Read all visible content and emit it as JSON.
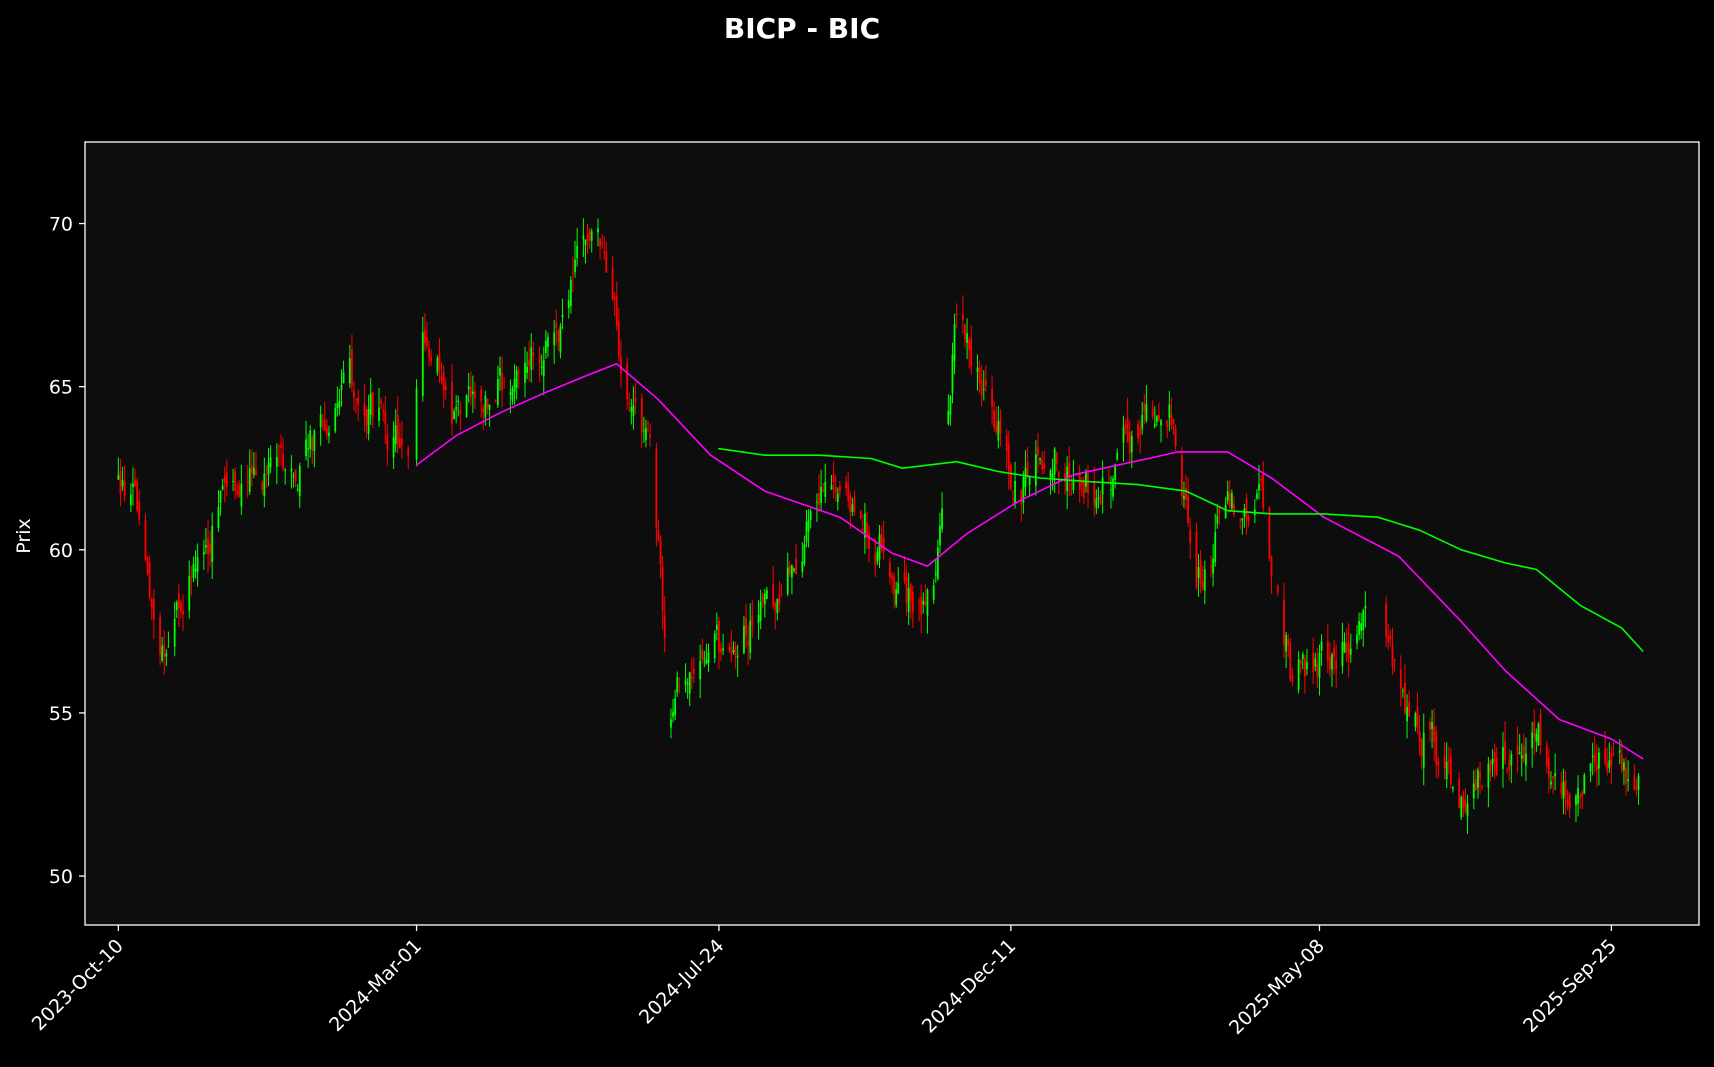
{
  "chart_data": {
    "type": "candlestick",
    "title": "BICP - BIC",
    "xlabel": "",
    "ylabel": "Prix",
    "ylim": [
      48.5,
      72.5
    ],
    "xlim": [
      "2023-09-24",
      "2025-11-06"
    ],
    "y_ticks": [
      50,
      55,
      60,
      65,
      70
    ],
    "x_ticks": [
      "2023-Oct-10",
      "2024-Mar-01",
      "2024-Jul-24",
      "2024-Dec-11",
      "2025-May-08",
      "2025-Sep-25"
    ],
    "grid": false,
    "legend": "none",
    "colors": {
      "background": "#000000",
      "plot_background": "#0d0d0d",
      "frame": "#ffffff",
      "text": "#ffffff",
      "up": "#00ff00",
      "down": "#ff0000"
    },
    "price_anchors": [
      [
        "2023-10-10",
        62.0
      ],
      [
        "2023-10-20",
        61.0
      ],
      [
        "2023-10-27",
        58.5
      ],
      [
        "2023-11-03",
        56.5
      ],
      [
        "2023-11-17",
        60.0
      ],
      [
        "2023-12-01",
        61.5
      ],
      [
        "2023-12-15",
        62.0
      ],
      [
        "2024-01-05",
        62.5
      ],
      [
        "2024-01-19",
        64.0
      ],
      [
        "2024-02-02",
        65.2
      ],
      [
        "2024-02-16",
        63.5
      ],
      [
        "2024-02-26",
        63.0
      ],
      [
        "2024-03-05",
        66.5
      ],
      [
        "2024-03-20",
        64.0
      ],
      [
        "2024-04-05",
        64.5
      ],
      [
        "2024-04-20",
        65.5
      ],
      [
        "2024-05-10",
        67.0
      ],
      [
        "2024-05-25",
        70.0
      ],
      [
        "2024-06-10",
        65.0
      ],
      [
        "2024-06-20",
        63.5
      ],
      [
        "2024-07-01",
        55.5
      ],
      [
        "2024-07-15",
        56.5
      ],
      [
        "2024-08-05",
        57.5
      ],
      [
        "2024-08-25",
        59.0
      ],
      [
        "2024-09-15",
        62.0
      ],
      [
        "2024-10-05",
        60.5
      ],
      [
        "2024-10-25",
        58.5
      ],
      [
        "2024-11-05",
        59.0
      ],
      [
        "2024-11-15",
        67.5
      ],
      [
        "2024-11-30",
        64.5
      ],
      [
        "2024-12-15",
        62.0
      ],
      [
        "2025-01-05",
        63.0
      ],
      [
        "2025-01-20",
        62.0
      ],
      [
        "2025-02-05",
        63.5
      ],
      [
        "2025-02-25",
        64.5
      ],
      [
        "2025-03-10",
        59.0
      ],
      [
        "2025-03-25",
        61.0
      ],
      [
        "2025-04-10",
        62.0
      ],
      [
        "2025-04-25",
        56.0
      ],
      [
        "2025-05-15",
        57.0
      ],
      [
        "2025-06-05",
        57.5
      ],
      [
        "2025-06-25",
        54.5
      ],
      [
        "2025-07-15",
        52.5
      ],
      [
        "2025-07-30",
        53.5
      ],
      [
        "2025-08-20",
        54.5
      ],
      [
        "2025-08-31",
        52.0
      ],
      [
        "2025-09-15",
        53.5
      ],
      [
        "2025-10-08",
        53.0
      ]
    ],
    "gaps": [
      [
        "2024-02-26",
        "2024-03-01"
      ],
      [
        "2025-04-15",
        "2025-04-18"
      ],
      [
        "2025-06-01",
        "2025-06-07"
      ]
    ],
    "series": [
      {
        "name": "",
        "color": "#ff00ff",
        "points": [
          [
            "2024-03-01",
            62.6
          ],
          [
            "2024-03-20",
            63.5
          ],
          [
            "2024-04-10",
            64.2
          ],
          [
            "2024-05-01",
            64.8
          ],
          [
            "2024-05-20",
            65.3
          ],
          [
            "2024-06-05",
            65.7
          ],
          [
            "2024-06-25",
            64.6
          ],
          [
            "2024-07-20",
            62.9
          ],
          [
            "2024-08-15",
            61.8
          ],
          [
            "2024-09-20",
            61.0
          ],
          [
            "2024-10-15",
            59.9
          ],
          [
            "2024-11-01",
            59.5
          ],
          [
            "2024-11-20",
            60.5
          ],
          [
            "2024-12-15",
            61.5
          ],
          [
            "2025-01-10",
            62.3
          ],
          [
            "2025-02-15",
            62.8
          ],
          [
            "2025-03-01",
            63.0
          ],
          [
            "2025-03-25",
            63.0
          ],
          [
            "2025-04-15",
            62.2
          ],
          [
            "2025-05-10",
            61.0
          ],
          [
            "2025-06-15",
            59.8
          ],
          [
            "2025-07-15",
            57.8
          ],
          [
            "2025-08-05",
            56.3
          ],
          [
            "2025-08-31",
            54.8
          ],
          [
            "2025-09-25",
            54.2
          ],
          [
            "2025-10-10",
            53.6
          ]
        ]
      },
      {
        "name": "",
        "color": "#00ff00",
        "points": [
          [
            "2024-07-24",
            63.1
          ],
          [
            "2024-08-15",
            62.9
          ],
          [
            "2024-09-10",
            62.9
          ],
          [
            "2024-10-05",
            62.8
          ],
          [
            "2024-10-20",
            62.5
          ],
          [
            "2024-11-15",
            62.7
          ],
          [
            "2024-12-05",
            62.4
          ],
          [
            "2024-12-25",
            62.2
          ],
          [
            "2025-01-15",
            62.1
          ],
          [
            "2025-02-10",
            62.0
          ],
          [
            "2025-03-05",
            61.8
          ],
          [
            "2025-03-25",
            61.2
          ],
          [
            "2025-04-15",
            61.1
          ],
          [
            "2025-05-10",
            61.1
          ],
          [
            "2025-06-05",
            61.0
          ],
          [
            "2025-06-25",
            60.6
          ],
          [
            "2025-07-15",
            60.0
          ],
          [
            "2025-08-05",
            59.6
          ],
          [
            "2025-08-20",
            59.4
          ],
          [
            "2025-09-10",
            58.3
          ],
          [
            "2025-09-30",
            57.6
          ],
          [
            "2025-10-10",
            56.9
          ]
        ]
      }
    ]
  }
}
